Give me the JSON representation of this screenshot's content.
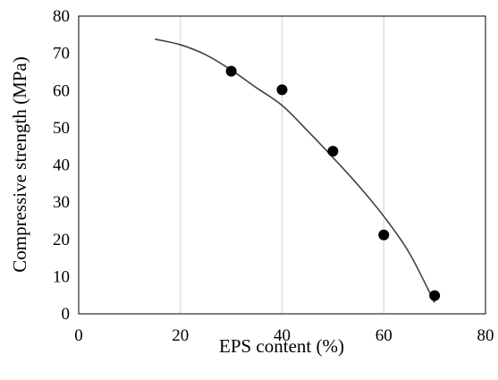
{
  "chart_data": {
    "type": "scatter",
    "xlabel": "EPS content (%)",
    "ylabel": "Compressive strength (MPa)",
    "xlim": [
      0,
      80
    ],
    "ylim": [
      0,
      80
    ],
    "x_ticks": [
      "0",
      "20",
      "40",
      "60",
      "80"
    ],
    "y_ticks": [
      "0",
      "10",
      "20",
      "30",
      "40",
      "50",
      "60",
      "70",
      "80"
    ],
    "grid": "vertical",
    "legend": "none",
    "series": [
      {
        "kind": "points",
        "marker": "filled-circle",
        "color": "#000000",
        "points": [
          {
            "x": 30,
            "y": 65.2
          },
          {
            "x": 40,
            "y": 60.2
          },
          {
            "x": 50,
            "y": 43.7
          },
          {
            "x": 60,
            "y": 21.2
          },
          {
            "x": 70,
            "y": 4.9
          }
        ]
      },
      {
        "kind": "trendline",
        "color": "#404040",
        "points": [
          {
            "x": 15,
            "y": 73.8
          },
          {
            "x": 20,
            "y": 72.3
          },
          {
            "x": 25,
            "y": 69.6
          },
          {
            "x": 30,
            "y": 65.5
          },
          {
            "x": 35,
            "y": 60.7
          },
          {
            "x": 40,
            "y": 56.0
          },
          {
            "x": 45,
            "y": 49.2
          },
          {
            "x": 50,
            "y": 42.0
          },
          {
            "x": 55,
            "y": 34.5
          },
          {
            "x": 60,
            "y": 26.2
          },
          {
            "x": 65,
            "y": 16.4
          },
          {
            "x": 70,
            "y": 3.0
          }
        ]
      }
    ]
  }
}
